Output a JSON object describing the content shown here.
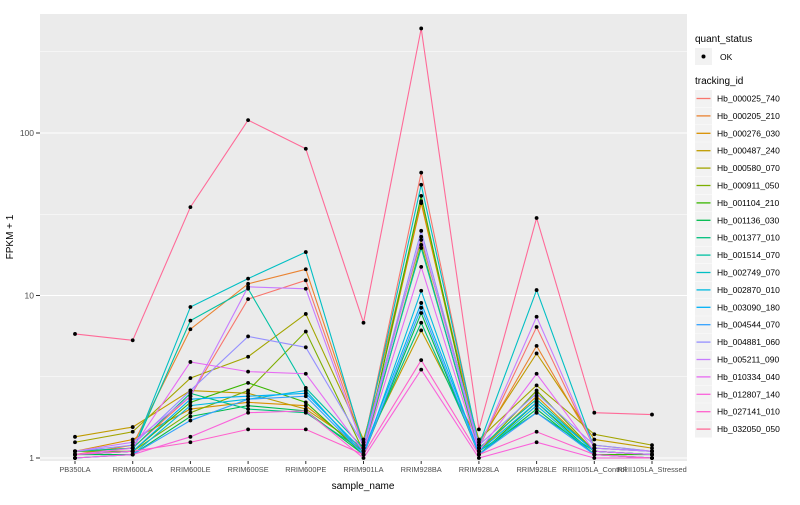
{
  "chart_data": {
    "type": "line",
    "title": "",
    "xlabel": "sample_name",
    "ylabel": "FPKM + 1",
    "y_scale": "log10",
    "y_tick_labels": [
      "1",
      "10",
      "100"
    ],
    "y_tick_values": [
      1,
      10,
      100
    ],
    "y_minor_values": [
      3.162,
      31.62,
      316.2
    ],
    "ylim": [
      1,
      530
    ],
    "grid": true,
    "legend_position": "right",
    "x_categories": [
      "PB350LA",
      "RRIM600LA",
      "RRIM600LE",
      "RRIM600SE",
      "RRIM600PE",
      "RRIM901LA",
      "RRIM928BA",
      "RRIM928LA",
      "RRIM928LE",
      "RRII105LA_Control",
      "RRII105LA_Stressed"
    ],
    "legend": {
      "quant_status_title": "quant_status",
      "quant_status_items": [
        {
          "label": "OK",
          "marker": "black-point"
        }
      ],
      "tracking_id_title": "tracking_id"
    },
    "point_color": "#000000",
    "series": [
      {
        "name": "Hb_000025_740",
        "color": "#F8766D",
        "values": [
          1.1,
          1.15,
          2.4,
          9.5,
          12.4,
          1.2,
          57,
          1.15,
          6.4,
          1.15,
          1.1
        ]
      },
      {
        "name": "Hb_000205_210",
        "color": "#EA8331",
        "values": [
          1.05,
          1.2,
          6.2,
          11.8,
          14.5,
          1.25,
          38,
          1.2,
          4.9,
          1.2,
          1.1
        ]
      },
      {
        "name": "Hb_000276_030",
        "color": "#D89000",
        "values": [
          1.1,
          1.3,
          2.0,
          2.2,
          2.1,
          1.1,
          37,
          1.1,
          2.4,
          1.1,
          1.05
        ]
      },
      {
        "name": "Hb_000487_240",
        "color": "#C09B00",
        "values": [
          1.35,
          1.55,
          2.6,
          2.5,
          2.0,
          1.15,
          6.1,
          1.25,
          4.4,
          1.3,
          1.15
        ]
      },
      {
        "name": "Hb_000580_070",
        "color": "#A3A500",
        "values": [
          1.25,
          1.45,
          3.1,
          4.2,
          7.7,
          1.3,
          22,
          1.3,
          2.8,
          1.4,
          1.2
        ]
      },
      {
        "name": "Hb_000911_050",
        "color": "#7CAE00",
        "values": [
          1.1,
          1.1,
          1.9,
          2.6,
          6.0,
          1.1,
          20.5,
          1.1,
          2.6,
          1.1,
          1.05
        ]
      },
      {
        "name": "Hb_001104_210",
        "color": "#39B600",
        "values": [
          1.05,
          1.1,
          2.2,
          2.9,
          2.2,
          1.05,
          41,
          1.05,
          2.2,
          1.05,
          1.05
        ]
      },
      {
        "name": "Hb_001136_030",
        "color": "#00BB4E",
        "values": [
          1.05,
          1.05,
          1.8,
          2.1,
          1.95,
          1.05,
          7.8,
          1.05,
          2.0,
          1.05,
          1.0
        ]
      },
      {
        "name": "Hb_001377_010",
        "color": "#00BF7D",
        "values": [
          1.1,
          1.15,
          2.5,
          2.0,
          1.9,
          1.1,
          6.8,
          1.1,
          1.9,
          1.1,
          1.05
        ]
      },
      {
        "name": "Hb_001514_070",
        "color": "#00C1A3",
        "values": [
          1.05,
          1.1,
          7.0,
          11.0,
          2.7,
          1.15,
          19.6,
          1.15,
          2.3,
          1.1,
          1.05
        ]
      },
      {
        "name": "Hb_002749_070",
        "color": "#00BFC4",
        "values": [
          1.05,
          1.1,
          8.5,
          12.7,
          18.5,
          1.2,
          48,
          1.2,
          10.8,
          1.15,
          1.1
        ]
      },
      {
        "name": "Hb_002870_010",
        "color": "#00BAE0",
        "values": [
          1.0,
          1.05,
          2.1,
          2.3,
          2.6,
          1.05,
          10.7,
          1.05,
          2.1,
          1.05,
          1.0
        ]
      },
      {
        "name": "Hb_003090_180",
        "color": "#00B0F6",
        "values": [
          1.05,
          1.1,
          2.3,
          2.4,
          2.5,
          1.1,
          9.0,
          1.1,
          2.2,
          1.1,
          1.05
        ]
      },
      {
        "name": "Hb_004544_070",
        "color": "#35A2FF",
        "values": [
          1.0,
          1.05,
          1.7,
          2.3,
          2.4,
          1.05,
          8.4,
          1.05,
          1.9,
          1.05,
          1.0
        ]
      },
      {
        "name": "Hb_004881_060",
        "color": "#9590FF",
        "values": [
          1.1,
          1.2,
          2.6,
          5.6,
          4.8,
          1.2,
          25,
          1.2,
          2.5,
          1.2,
          1.1
        ]
      },
      {
        "name": "Hb_005211_090",
        "color": "#C77CFF",
        "values": [
          1.1,
          1.25,
          2.4,
          11.3,
          11.0,
          1.15,
          23,
          1.15,
          7.4,
          1.15,
          1.1
        ]
      },
      {
        "name": "Hb_010334_040",
        "color": "#E76BF3",
        "values": [
          1.05,
          1.15,
          3.9,
          3.4,
          3.3,
          1.1,
          15,
          1.1,
          3.3,
          1.1,
          1.05
        ]
      },
      {
        "name": "Hb_012807_140",
        "color": "#FA62DB",
        "values": [
          1.0,
          1.05,
          1.35,
          1.9,
          1.95,
          1.0,
          3.5,
          1.0,
          1.25,
          1.0,
          1.0
        ]
      },
      {
        "name": "Hb_027141_010",
        "color": "#FF61CC",
        "values": [
          1.05,
          1.1,
          1.25,
          1.5,
          1.5,
          1.05,
          4.0,
          1.05,
          1.45,
          1.05,
          1.0
        ]
      },
      {
        "name": "Hb_032050_050",
        "color": "#FF6A98",
        "values": [
          5.8,
          5.3,
          35,
          120,
          80,
          6.8,
          440,
          1.5,
          30,
          1.9,
          1.85
        ]
      }
    ]
  },
  "style": {
    "panel_bg": "#EBEBEB",
    "grid_color": "#FFFFFF",
    "axis_text_color": "#4D4D4D",
    "tick_mark_color": "#333333",
    "legend_key_bg": "#F2F2F2"
  }
}
